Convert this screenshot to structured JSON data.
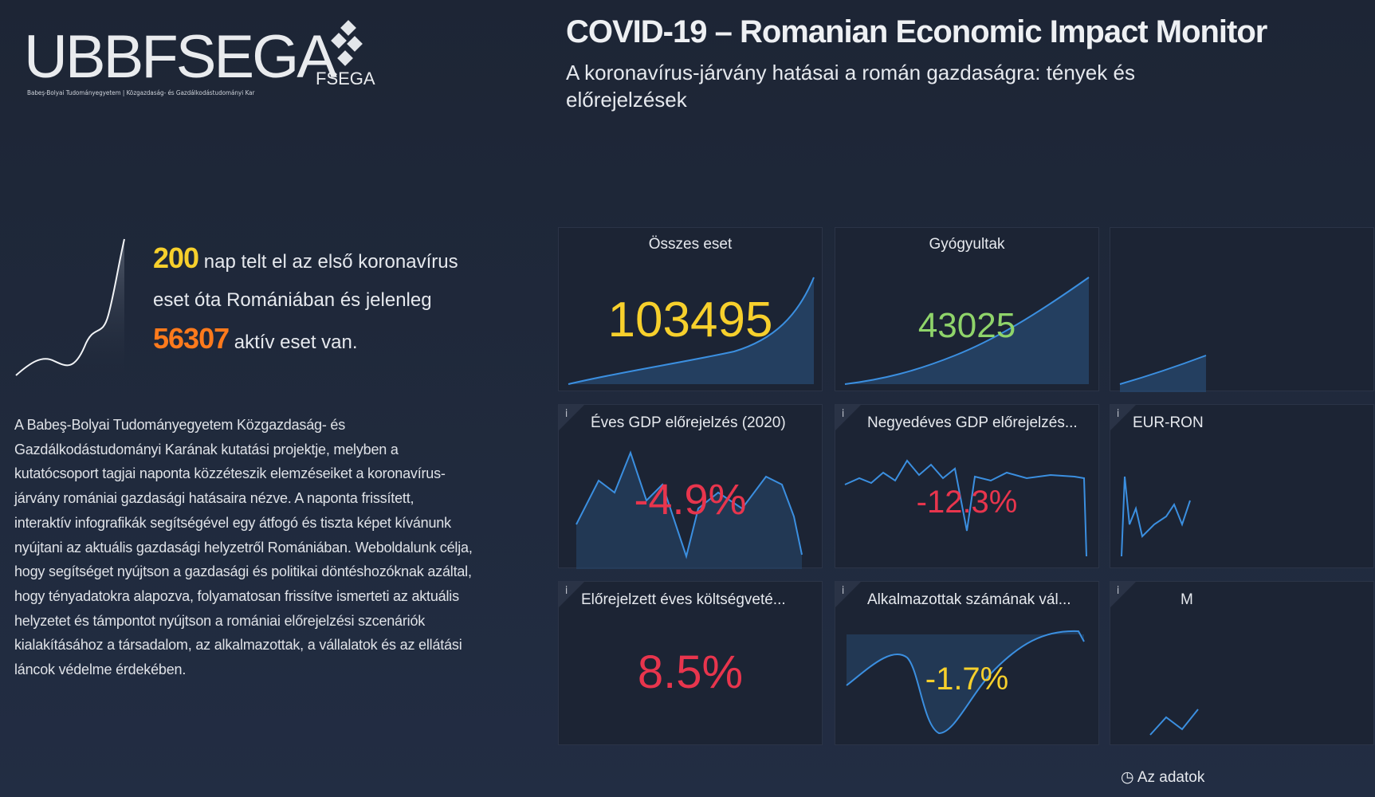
{
  "header": {
    "logo": "UBBFSEGA",
    "logo_caption": "Babeş-Bolyai Tudományegyetem | Közgazdaság- és Gazdálkodástudományi Kar",
    "badge": "FSEGA",
    "title": "COVID-19 – Romanian Economic Impact Monitor",
    "subtitle": "A koronavírus-járvány hatásai a román gazdaságra: tények és előrejelzések"
  },
  "intro": {
    "days": "200",
    "text_1": "nap telt el az első koronavírus eset óta Romániában és jelenleg",
    "active": "56307",
    "text_2": "aktív eset van."
  },
  "description": "A Babeş-Bolyai Tudományegyetem Közgazdaság- és Gazdálkodástudományi Karának kutatási projektje, melyben a kutatócsoport tagjai naponta közzéteszik elemzéseiket a koronavírus-járvány romániai gazdasági hatásaira nézve. A naponta frissített, interaktív infografikák segítségével egy átfogó és tiszta képet kívánunk nyújtani az aktuális gazdasági helyzetről Romániában. Weboldalunk célja, hogy segítséget nyújtson a gazdasági és politikai döntéshozóknak azáltal, hogy tényadatokra alapozva, folyamatosan frissítve ismerteti az aktuális helyzetet és támpontot nyújtson a romániai előrejelzési szcenáriók kialakításához a társadalom, az alkalmazottak, a vállalatok és az ellátási láncok védelme érdekében.",
  "tiles": [
    {
      "title": "Összes eset",
      "value": "103495"
    },
    {
      "title": "Gyógyultak",
      "value": "43025"
    },
    {
      "title": "Éves GDP előrejelzés (2020)",
      "value": "-4.9%"
    },
    {
      "title": "Negyedéves GDP előrejelzés...",
      "value": "-12.3%"
    },
    {
      "title": "EUR-RON"
    },
    {
      "title": "Előrejelzett éves költségveté...",
      "value": "8.5%"
    },
    {
      "title": "Alkalmazottak számának vál...",
      "value": "-1.7%"
    },
    {
      "title": "M"
    }
  ],
  "info_icon": "i",
  "footer": "Az adatok"
}
